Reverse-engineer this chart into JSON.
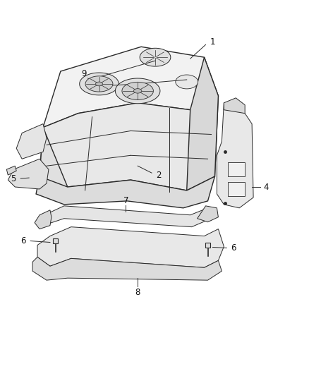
{
  "background_color": "#ffffff",
  "line_color": "#2a2a2a",
  "fill_light": "#f0f0f0",
  "fill_mid": "#e0e0e0",
  "fill_dark": "#cacaca",
  "fig_width": 4.38,
  "fig_height": 5.33,
  "dpi": 100
}
